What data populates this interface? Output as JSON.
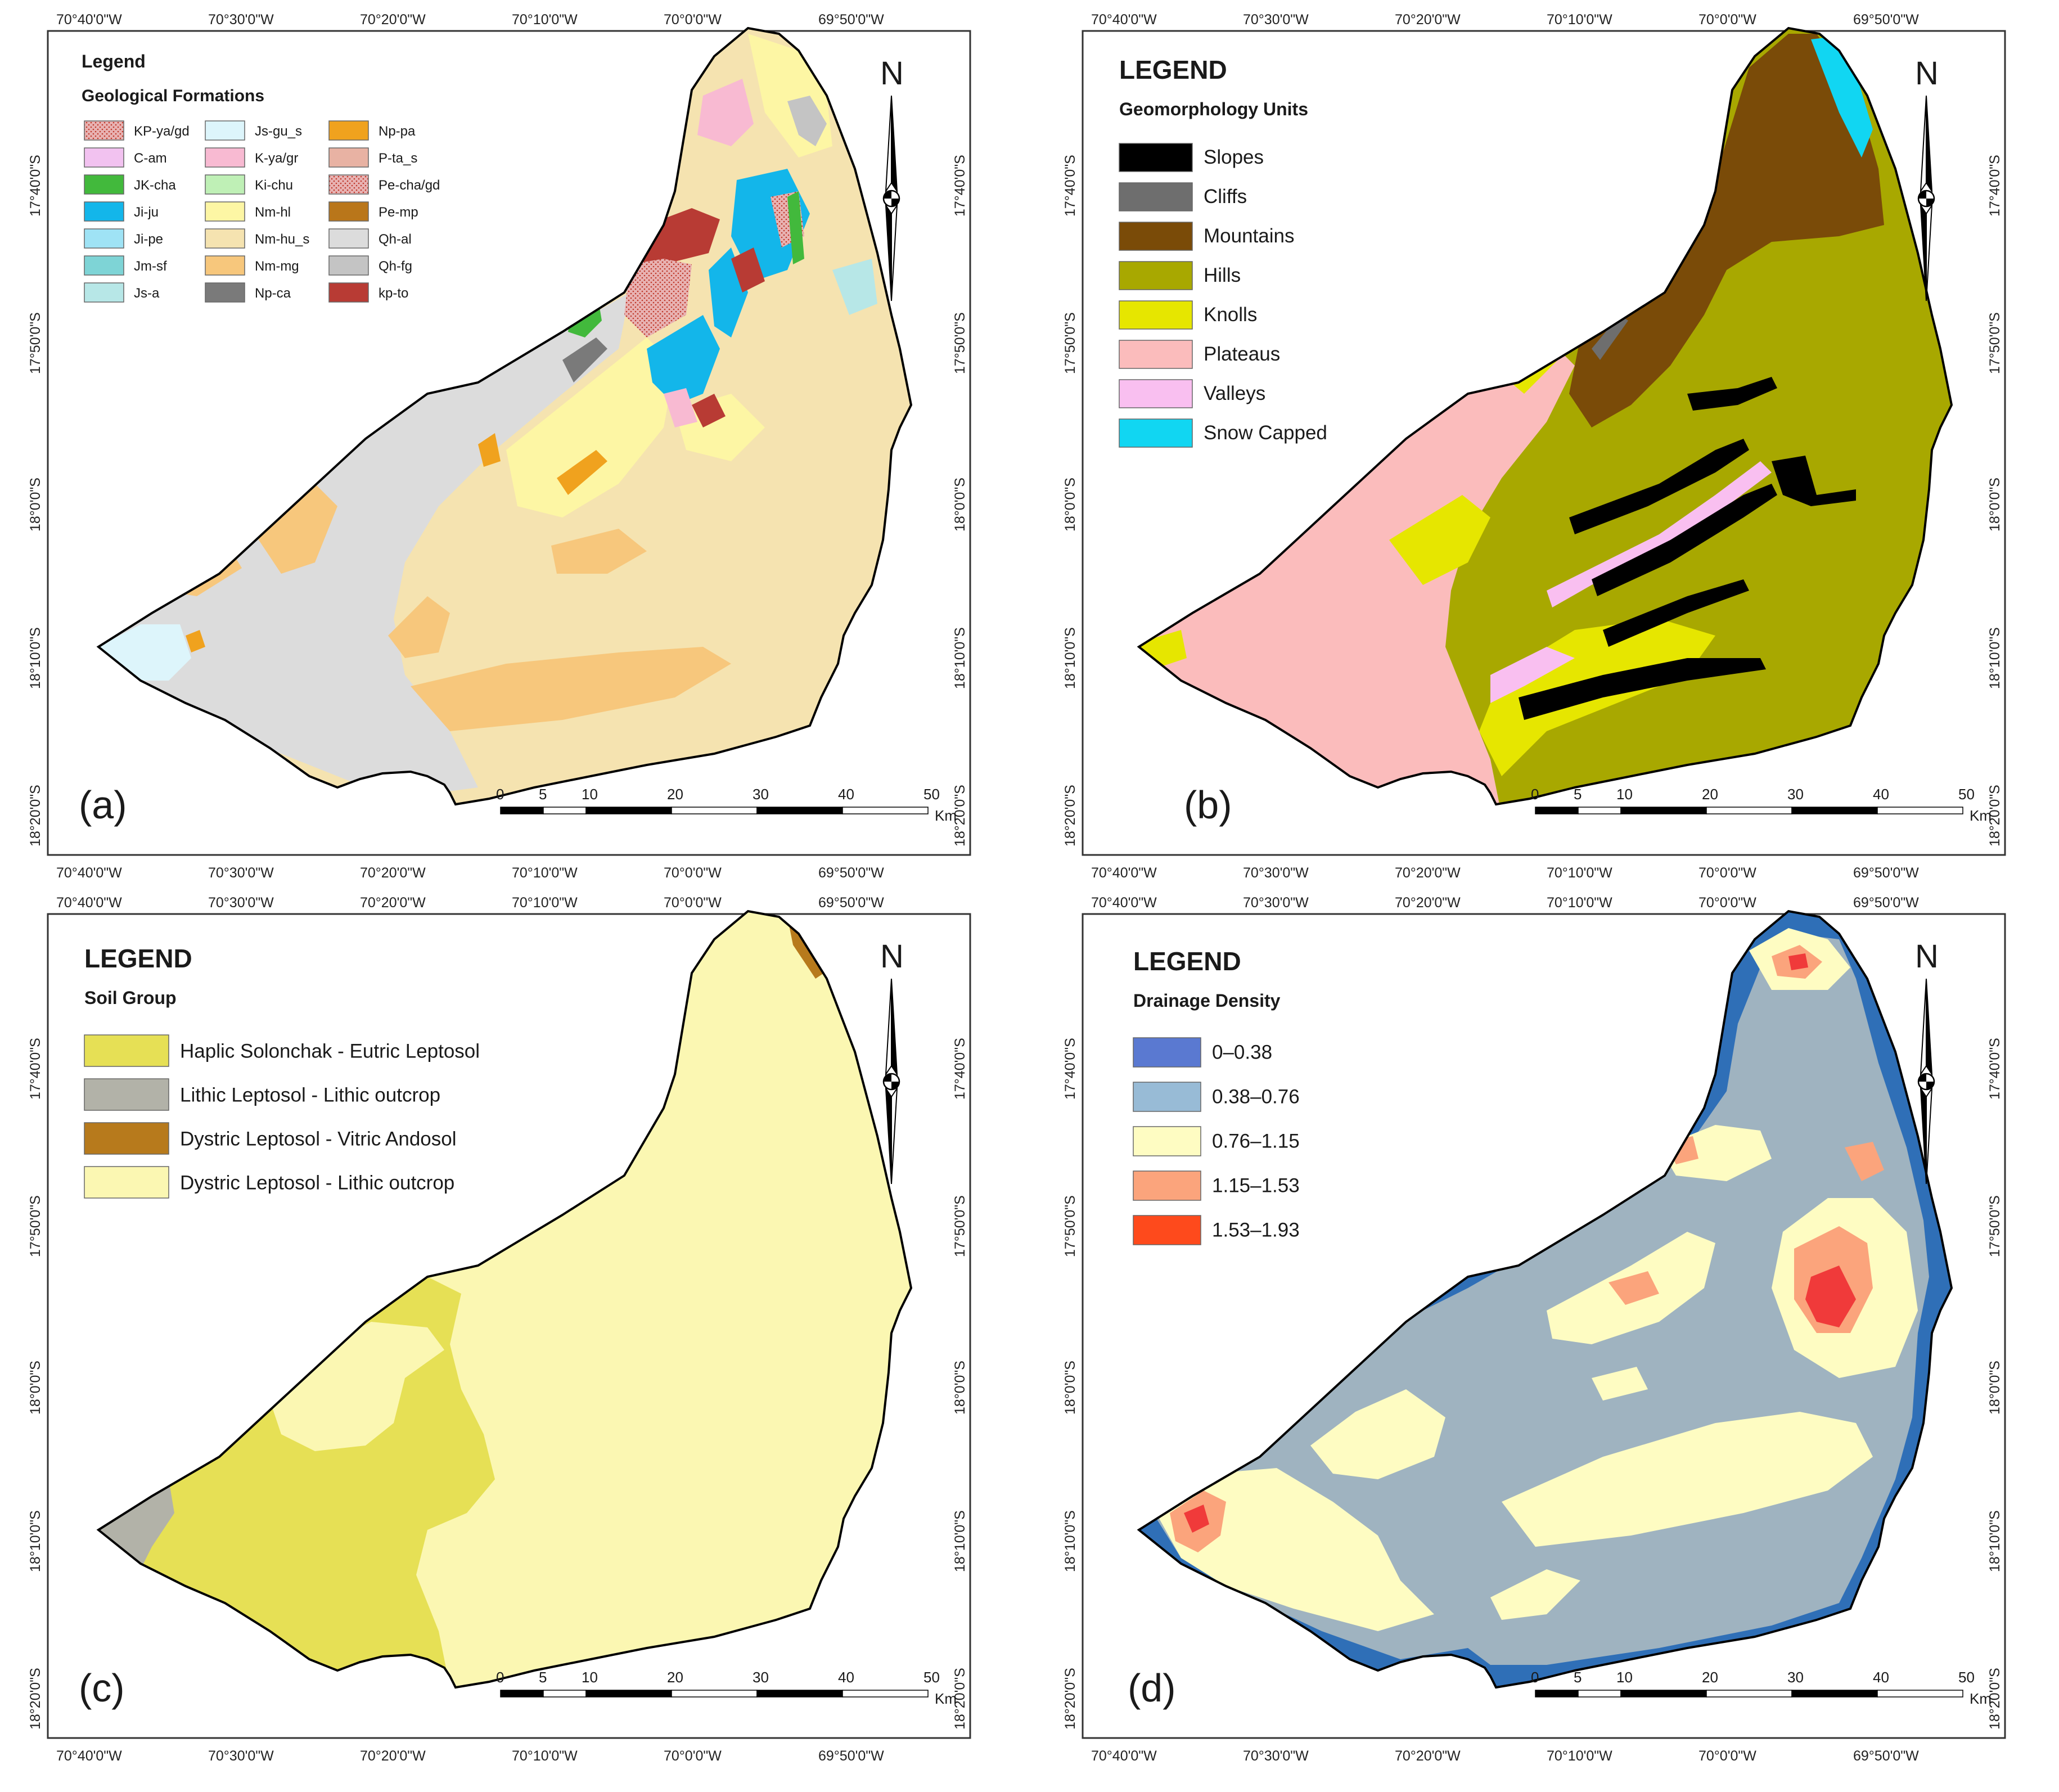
{
  "panels": [
    {
      "id": "a",
      "letter": "(a)",
      "legend_title": "Legend",
      "legend_subtitle": "Geological Formations",
      "items": [
        {
          "label": "KP-ya/gd",
          "color": "#e8b2b2",
          "pattern": true
        },
        {
          "label": "C-am",
          "color": "#f2c2f0"
        },
        {
          "label": "JK-cha",
          "color": "#42b93c"
        },
        {
          "label": "Ji-ju",
          "color": "#13b6ea"
        },
        {
          "label": "Ji-pe",
          "color": "#9fe3f5"
        },
        {
          "label": "Jm-sf",
          "color": "#7ed4d6"
        },
        {
          "label": "Js-a",
          "color": "#b7e7e7"
        },
        {
          "label": "Js-gu_s",
          "color": "#ddf5fb"
        },
        {
          "label": "K-ya/gr",
          "color": "#f8bad2"
        },
        {
          "label": "Ki-chu",
          "color": "#bff0b6"
        },
        {
          "label": "Nm-hl",
          "color": "#fdf6a4"
        },
        {
          "label": "Nm-hu_s",
          "color": "#f5e3b0"
        },
        {
          "label": "Nm-mg",
          "color": "#f7c77c"
        },
        {
          "label": "Np-ca",
          "color": "#7a7a7a"
        },
        {
          "label": "Np-pa",
          "color": "#f0a21e"
        },
        {
          "label": "P-ta_s",
          "color": "#e8b2a3"
        },
        {
          "label": "Pe-cha/gd",
          "color": "#e8a0a0",
          "pattern": true
        },
        {
          "label": "Pe-mp",
          "color": "#b9761a"
        },
        {
          "label": "Qh-al",
          "color": "#dcdcdc"
        },
        {
          "label": "Qh-fg",
          "color": "#c4c4c4"
        },
        {
          "label": "kp-to",
          "color": "#b83b34"
        }
      ]
    },
    {
      "id": "b",
      "letter": "(b)",
      "legend_title": "LEGEND",
      "legend_subtitle": "Geomorphology Units",
      "items": [
        {
          "label": "Slopes",
          "color": "#000000"
        },
        {
          "label": "Cliffs",
          "color": "#6e6e6e"
        },
        {
          "label": "Mountains",
          "color": "#7a4b08"
        },
        {
          "label": "Hills",
          "color": "#a8a800"
        },
        {
          "label": "Knolls",
          "color": "#e6e600"
        },
        {
          "label": "Plateaus",
          "color": "#fbbcbc"
        },
        {
          "label": "Valleys",
          "color": "#f9bff0"
        },
        {
          "label": "Snow Capped",
          "color": "#11d6f2"
        }
      ]
    },
    {
      "id": "c",
      "letter": "(c)",
      "legend_title": "LEGEND",
      "legend_subtitle": "Soil Group",
      "items": [
        {
          "label": "Haplic Solonchak - Eutric Leptosol",
          "color": "#e6e055"
        },
        {
          "label": "Lithic Leptosol - Lithic outcrop",
          "color": "#b2b2a8"
        },
        {
          "label": "Dystric Leptosol - Vitric Andosol",
          "color": "#b77a1c"
        },
        {
          "label": "Dystric Leptosol - Lithic outcrop",
          "color": "#fbf7b2"
        }
      ]
    },
    {
      "id": "d",
      "letter": "(d)",
      "legend_title": "LEGEND",
      "legend_subtitle": "Drainage Density",
      "items": [
        {
          "label": "0–0.38",
          "color": "#5a79d1"
        },
        {
          "label": "0.38–0.76",
          "color": "#98bbd6"
        },
        {
          "label": "0.76–1.15",
          "color": "#fefcc2"
        },
        {
          "label": "1.15–1.53",
          "color": "#fba47c"
        },
        {
          "label": "1.53–1.93",
          "color": "#fe4a1c"
        }
      ]
    }
  ],
  "coords": {
    "lon": [
      "70°40'0\"W",
      "70°30'0\"W",
      "70°20'0\"W",
      "70°10'0\"W",
      "70°0'0\"W",
      "69°50'0\"W"
    ],
    "lat": [
      "17°40'0\"S",
      "17°50'0\"S",
      "18°0'0\"S",
      "18°10'0\"S",
      "18°20'0\"S"
    ]
  },
  "scalebar": {
    "labels": [
      "0",
      "5",
      "10",
      "20",
      "30",
      "40",
      "50"
    ],
    "unit": "Km"
  },
  "north_label": "N",
  "colors": {
    "geo_base": "#f5e3b0",
    "geo_valley": "#dcdcdc",
    "geo_mg": "#f7c77c",
    "geo_hl": "#fdf6a4",
    "geo_ju": "#13b6ea",
    "geo_to": "#b83b34",
    "geo_ka": "#f8bad2",
    "geo_qh": "#c4c4c4",
    "geo_cha": "#42b93c",
    "geo_gs": "#ddf5fb",
    "geo_pa": "#f0a21e",
    "geo_npca": "#7a7a7a",
    "geo_jsa": "#b7e7e7",
    "geomorph_hills": "#a8a800",
    "geomorph_mountains": "#7a4b08",
    "geomorph_plateaus": "#fbbcbc",
    "geomorph_knolls": "#e6e600",
    "geomorph_valleys": "#f9bff0",
    "geomorph_snow": "#11d6f2",
    "geomorph_slopes": "#000000",
    "geomorph_cliffs": "#6e6e6e",
    "soil_light": "#fbf7b2",
    "soil_yellow": "#e6e055",
    "soil_gray": "#b2b2a8",
    "soil_brown": "#b77a1c",
    "dd_dark": "#2f6fb7",
    "dd_light": "#9fb3c0",
    "dd_cream": "#fefcc2",
    "dd_salmon": "#fba47c",
    "dd_red": "#f03a3a"
  }
}
